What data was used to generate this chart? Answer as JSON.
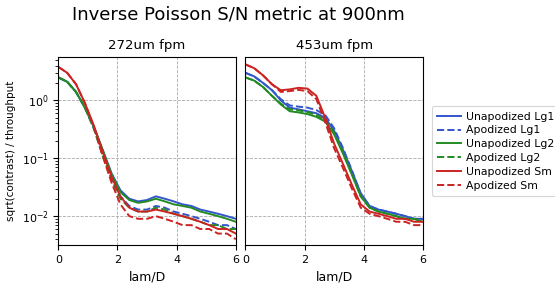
{
  "title": "Inverse Poisson S/N metric at 900nm",
  "title_fontsize": 13,
  "subtitle1": "272um fpm",
  "subtitle2": "453um fpm",
  "xlabel": "lam/D",
  "ylabel": "sqrt(contrast) / throughput",
  "xlim": [
    0,
    6
  ],
  "xticks": [
    0,
    2,
    4,
    6
  ],
  "grid_color": "#aaaaaa",
  "bg_color": "#ffffff",
  "colors": {
    "blue": "#3355cc",
    "green": "#228B22",
    "red": "#cc2222"
  },
  "legend_entries": [
    {
      "label": "Unapodized Lg1",
      "color": "#3355cc",
      "ls": "solid"
    },
    {
      "label": "Apodized Lg1",
      "color": "#3355cc",
      "ls": "dashed"
    },
    {
      "label": "Unapodized Lg2",
      "color": "#228B22",
      "ls": "solid"
    },
    {
      "label": "Apodized Lg2",
      "color": "#228B22",
      "ls": "dashed"
    },
    {
      "label": "Unapodized Sm",
      "color": "#cc2222",
      "ls": "solid"
    },
    {
      "label": "Apodized Sm",
      "color": "#cc2222",
      "ls": "dashed"
    }
  ],
  "panel1": {
    "x": [
      0.0,
      0.3,
      0.6,
      0.9,
      1.2,
      1.5,
      1.8,
      2.1,
      2.4,
      2.7,
      3.0,
      3.3,
      3.6,
      3.9,
      4.2,
      4.5,
      4.8,
      5.1,
      5.4,
      5.7,
      6.0
    ],
    "blue_solid": [
      2.5,
      2.1,
      1.4,
      0.75,
      0.35,
      0.14,
      0.055,
      0.028,
      0.02,
      0.018,
      0.019,
      0.022,
      0.02,
      0.018,
      0.016,
      0.015,
      0.013,
      0.012,
      0.011,
      0.01,
      0.009
    ],
    "blue_dashed": [
      2.5,
      2.1,
      1.4,
      0.75,
      0.33,
      0.12,
      0.046,
      0.022,
      0.015,
      0.013,
      0.013,
      0.015,
      0.014,
      0.012,
      0.011,
      0.01,
      0.009,
      0.008,
      0.007,
      0.007,
      0.006
    ],
    "green_solid": [
      2.5,
      2.1,
      1.4,
      0.75,
      0.35,
      0.14,
      0.053,
      0.026,
      0.019,
      0.017,
      0.018,
      0.02,
      0.018,
      0.016,
      0.015,
      0.014,
      0.012,
      0.011,
      0.01,
      0.009,
      0.008
    ],
    "green_dashed": [
      2.5,
      2.1,
      1.4,
      0.75,
      0.33,
      0.11,
      0.043,
      0.02,
      0.014,
      0.012,
      0.012,
      0.014,
      0.013,
      0.011,
      0.01,
      0.009,
      0.008,
      0.007,
      0.007,
      0.006,
      0.006
    ],
    "red_solid": [
      3.8,
      3.0,
      1.9,
      0.9,
      0.37,
      0.13,
      0.048,
      0.022,
      0.014,
      0.012,
      0.012,
      0.013,
      0.012,
      0.011,
      0.01,
      0.009,
      0.008,
      0.007,
      0.006,
      0.006,
      0.005
    ],
    "red_dashed": [
      3.8,
      3.0,
      1.9,
      0.9,
      0.35,
      0.11,
      0.038,
      0.016,
      0.01,
      0.009,
      0.009,
      0.01,
      0.009,
      0.008,
      0.007,
      0.007,
      0.006,
      0.006,
      0.005,
      0.005,
      0.004
    ]
  },
  "panel2": {
    "x": [
      0.0,
      0.3,
      0.6,
      0.9,
      1.2,
      1.5,
      1.8,
      2.1,
      2.4,
      2.7,
      3.0,
      3.3,
      3.6,
      3.9,
      4.2,
      4.5,
      4.8,
      5.1,
      5.4,
      5.7,
      6.0
    ],
    "blue_solid": [
      3.0,
      2.6,
      2.0,
      1.5,
      1.0,
      0.75,
      0.7,
      0.65,
      0.6,
      0.5,
      0.3,
      0.14,
      0.06,
      0.025,
      0.015,
      0.013,
      0.012,
      0.011,
      0.01,
      0.009,
      0.009
    ],
    "blue_dashed": [
      3.0,
      2.6,
      2.0,
      1.5,
      1.05,
      0.82,
      0.78,
      0.75,
      0.68,
      0.56,
      0.33,
      0.15,
      0.062,
      0.024,
      0.015,
      0.013,
      0.012,
      0.011,
      0.01,
      0.009,
      0.009
    ],
    "green_solid": [
      2.5,
      2.2,
      1.7,
      1.2,
      0.85,
      0.65,
      0.62,
      0.58,
      0.52,
      0.43,
      0.26,
      0.12,
      0.052,
      0.022,
      0.014,
      0.012,
      0.011,
      0.01,
      0.009,
      0.009,
      0.008
    ],
    "green_dashed": [
      2.5,
      2.2,
      1.7,
      1.2,
      0.88,
      0.7,
      0.67,
      0.63,
      0.56,
      0.46,
      0.28,
      0.13,
      0.054,
      0.022,
      0.014,
      0.012,
      0.011,
      0.01,
      0.009,
      0.009,
      0.008
    ],
    "red_solid": [
      4.2,
      3.6,
      2.7,
      1.9,
      1.5,
      1.55,
      1.65,
      1.6,
      1.2,
      0.5,
      0.18,
      0.08,
      0.035,
      0.016,
      0.012,
      0.011,
      0.01,
      0.009,
      0.009,
      0.008,
      0.008
    ],
    "red_dashed": [
      4.2,
      3.6,
      2.7,
      1.9,
      1.4,
      1.45,
      1.52,
      1.45,
      1.05,
      0.42,
      0.15,
      0.068,
      0.03,
      0.014,
      0.011,
      0.01,
      0.009,
      0.008,
      0.008,
      0.007,
      0.007
    ]
  }
}
